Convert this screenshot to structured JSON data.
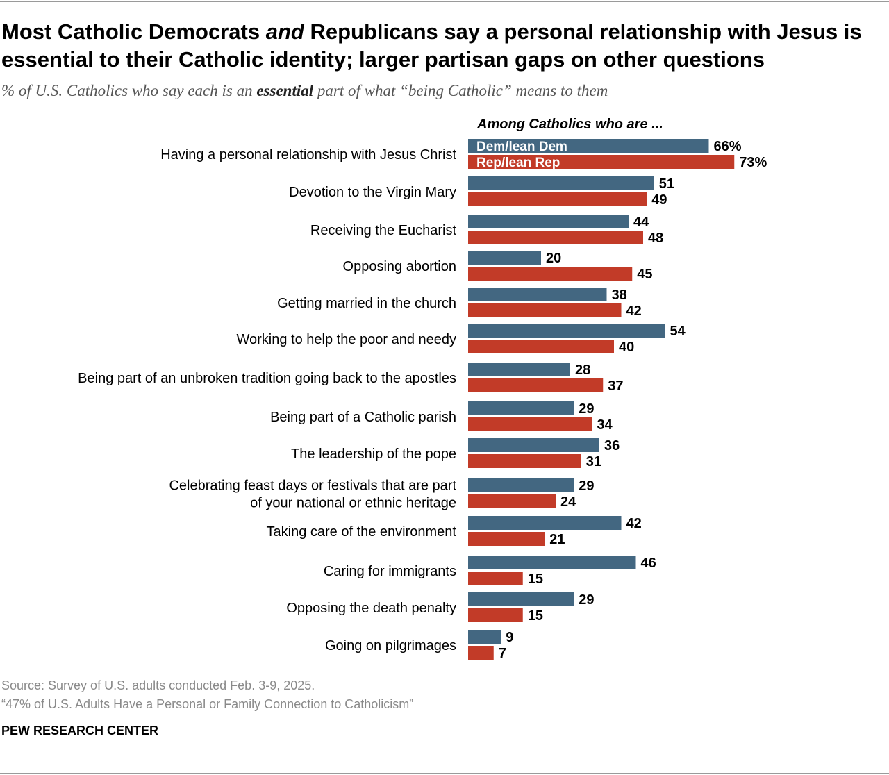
{
  "header": {
    "title_part1": "Most Catholic Democrats ",
    "title_em": "and",
    "title_part2": " Republicans say a personal relationship with Jesus is essential to their Catholic identity; larger partisan gaps on other questions",
    "subtitle_part1": "% of U.S. Catholics who say each is an ",
    "subtitle_bold": "essential",
    "subtitle_part2": " part of what “being Catholic” means to them"
  },
  "chart_data": {
    "type": "bar",
    "orientation": "horizontal",
    "group_heading": "Among Catholics who are ...",
    "categories": [
      [
        "Having a personal relationship with Jesus Christ"
      ],
      [
        "Devotion to the Virgin Mary"
      ],
      [
        "Receiving the Eucharist"
      ],
      [
        "Opposing abortion"
      ],
      [
        "Getting married in the church"
      ],
      [
        "Working to help the poor and needy"
      ],
      [
        "Being part of an unbroken tradition going back to the apostles"
      ],
      [
        "Being part of a Catholic parish"
      ],
      [
        "The leadership of the pope"
      ],
      [
        "Celebrating feast days or festivals that are part",
        "of your national or ethnic heritage"
      ],
      [
        "Taking care of the environment"
      ],
      [
        "Caring for immigrants"
      ],
      [
        "Opposing the death penalty"
      ],
      [
        "Going on pilgrimages"
      ]
    ],
    "series": [
      {
        "name": "Dem/lean Dem",
        "color": "#436781",
        "values": [
          66,
          51,
          44,
          20,
          38,
          54,
          28,
          29,
          36,
          29,
          42,
          46,
          29,
          9
        ]
      },
      {
        "name": "Rep/lean Rep",
        "color": "#c23b28",
        "values": [
          73,
          49,
          48,
          45,
          42,
          40,
          37,
          34,
          31,
          24,
          21,
          15,
          15,
          7
        ]
      }
    ],
    "first_label_suffix": "%",
    "xlim": [
      0,
      100
    ],
    "grid": false,
    "legend": "inside-first-bars"
  },
  "footer": {
    "source": "Source: Survey of U.S. adults conducted Feb. 3-9, 2025.",
    "report": "“47% of U.S. Adults Have a Personal or Family Connection to Catholicism”",
    "brand": "PEW RESEARCH CENTER"
  }
}
